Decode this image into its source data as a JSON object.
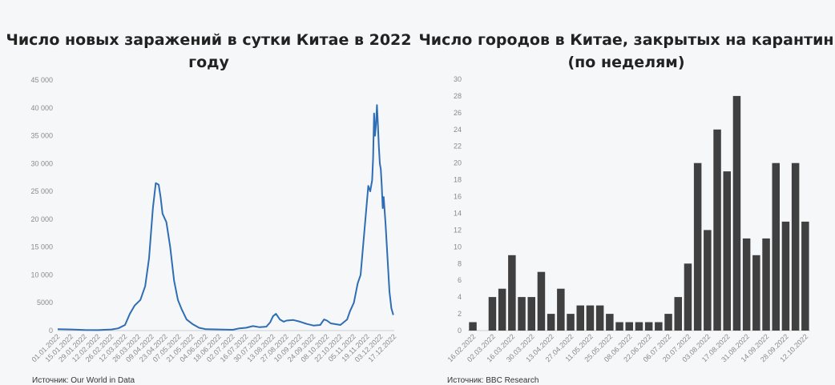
{
  "left": {
    "title_line1": "Число новых заражений в сутки Китае в 2022",
    "title_line2": "году",
    "source": "Источник: Our World in Data"
  },
  "right": {
    "title_line1": "Число городов в Китае, закрытых на карантин",
    "title_line2": "(по неделям)",
    "source": "Источник: BBC Research"
  },
  "colors": {
    "line": "#2f6db5",
    "bar": "#404040",
    "axis": "#cfcfcf"
  },
  "chart_data": [
    {
      "type": "line",
      "title": "Число новых заражений в сутки Китае в 2022 году",
      "xlabel": "",
      "ylabel": "",
      "ylim": [
        0,
        45000
      ],
      "y_ticks": [
        0,
        5000,
        10000,
        15000,
        20000,
        25000,
        30000,
        35000,
        40000,
        45000
      ],
      "y_tick_labels": [
        "0",
        "5000",
        "10 000",
        "15 000",
        "20 000",
        "25 000",
        "30 000",
        "35 000",
        "40 000",
        "45 000"
      ],
      "x_tick_labels": [
        "01.01.2022",
        "15.01.2022",
        "29.01.2022",
        "12.02.2022",
        "26.02.2022",
        "12.03.2022",
        "26.03.2022",
        "09.04.2022",
        "23.04.2022",
        "07.05.2022",
        "21.05.2022",
        "04.06.2022",
        "18.06.2022",
        "02.07.2022",
        "16.07.2022",
        "30.07.2022",
        "13.08.2022",
        "27.08.2022",
        "10.09.2022",
        "24.09.2022",
        "08.10.2022",
        "22.10.2022",
        "05.11.2022",
        "19.11.2022",
        "03.12.2022",
        "17.12.2022"
      ],
      "grid": false,
      "series": [
        {
          "points": [
            [
              "2022-01-01",
              250
            ],
            [
              "2022-01-15",
              200
            ],
            [
              "2022-01-29",
              100
            ],
            [
              "2022-02-12",
              80
            ],
            [
              "2022-02-26",
              200
            ],
            [
              "2022-03-05",
              400
            ],
            [
              "2022-03-12",
              1000
            ],
            [
              "2022-03-17",
              3000
            ],
            [
              "2022-03-22",
              4500
            ],
            [
              "2022-03-28",
              5500
            ],
            [
              "2022-04-02",
              8000
            ],
            [
              "2022-04-06",
              13000
            ],
            [
              "2022-04-10",
              22000
            ],
            [
              "2022-04-13",
              26500
            ],
            [
              "2022-04-16",
              26200
            ],
            [
              "2022-04-18",
              24000
            ],
            [
              "2022-04-20",
              21000
            ],
            [
              "2022-04-24",
              19500
            ],
            [
              "2022-04-28",
              15000
            ],
            [
              "2022-05-02",
              9000
            ],
            [
              "2022-05-06",
              5500
            ],
            [
              "2022-05-10",
              3800
            ],
            [
              "2022-05-15",
              2000
            ],
            [
              "2022-05-21",
              1200
            ],
            [
              "2022-05-28",
              500
            ],
            [
              "2022-06-04",
              250
            ],
            [
              "2022-06-18",
              200
            ],
            [
              "2022-07-02",
              150
            ],
            [
              "2022-07-09",
              400
            ],
            [
              "2022-07-16",
              500
            ],
            [
              "2022-07-23",
              800
            ],
            [
              "2022-07-30",
              600
            ],
            [
              "2022-08-06",
              700
            ],
            [
              "2022-08-10",
              1500
            ],
            [
              "2022-08-13",
              2600
            ],
            [
              "2022-08-16",
              3000
            ],
            [
              "2022-08-20",
              2000
            ],
            [
              "2022-08-24",
              1600
            ],
            [
              "2022-08-27",
              1800
            ],
            [
              "2022-09-03",
              1900
            ],
            [
              "2022-09-10",
              1600
            ],
            [
              "2022-09-17",
              1200
            ],
            [
              "2022-09-24",
              900
            ],
            [
              "2022-10-01",
              1000
            ],
            [
              "2022-10-05",
              2000
            ],
            [
              "2022-10-08",
              1800
            ],
            [
              "2022-10-12",
              1300
            ],
            [
              "2022-10-22",
              1000
            ],
            [
              "2022-10-29",
              2000
            ],
            [
              "2022-11-01",
              3500
            ],
            [
              "2022-11-05",
              5000
            ],
            [
              "2022-11-09",
              8500
            ],
            [
              "2022-11-12",
              10000
            ],
            [
              "2022-11-15",
              16000
            ],
            [
              "2022-11-18",
              22000
            ],
            [
              "2022-11-20",
              26000
            ],
            [
              "2022-11-22",
              25000
            ],
            [
              "2022-11-24",
              27000
            ],
            [
              "2022-11-25",
              31000
            ],
            [
              "2022-11-26",
              39000
            ],
            [
              "2022-11-27",
              35000
            ],
            [
              "2022-11-28",
              37000
            ],
            [
              "2022-11-29",
              40500
            ],
            [
              "2022-11-30",
              37000
            ],
            [
              "2022-12-01",
              33000
            ],
            [
              "2022-12-02",
              30000
            ],
            [
              "2022-12-03",
              29000
            ],
            [
              "2022-12-04",
              26000
            ],
            [
              "2022-12-05",
              22000
            ],
            [
              "2022-12-06",
              24000
            ],
            [
              "2022-12-08",
              19000
            ],
            [
              "2022-12-10",
              13000
            ],
            [
              "2022-12-12",
              7000
            ],
            [
              "2022-12-14",
              4000
            ],
            [
              "2022-12-16",
              2800
            ]
          ]
        }
      ]
    },
    {
      "type": "bar",
      "title": "Число городов в Китае, закрытых на карантин (по неделям)",
      "xlabel": "",
      "ylabel": "",
      "ylim": [
        0,
        30
      ],
      "y_ticks": [
        0,
        2,
        4,
        6,
        8,
        10,
        12,
        14,
        16,
        18,
        20,
        22,
        24,
        26,
        28,
        30
      ],
      "grid": false,
      "categories": [
        "16.02.2022",
        "23.02.2022",
        "02.03.2022",
        "09.03.2022",
        "16.03.2022",
        "23.03.2022",
        "30.03.2022",
        "06.04.2022",
        "13.04.2022",
        "20.04.2022",
        "27.04.2022",
        "04.05.2022",
        "11.05.2022",
        "18.05.2022",
        "25.05.2022",
        "01.06.2022",
        "08.06.2022",
        "15.06.2022",
        "22.06.2022",
        "29.06.2022",
        "06.07.2022",
        "13.07.2022",
        "20.07.2022",
        "27.07.2022",
        "03.08.2022",
        "10.08.2022",
        "17.08.2022",
        "24.08.2022",
        "31.08.2022",
        "07.09.2022",
        "14.09.2022",
        "21.09.2022",
        "28.09.2022",
        "05.10.2022",
        "12.10.2022"
      ],
      "values": [
        1,
        0,
        4,
        5,
        9,
        4,
        4,
        7,
        2,
        5,
        2,
        3,
        3,
        3,
        2,
        1,
        1,
        1,
        1,
        1,
        2,
        4,
        8,
        20,
        12,
        24,
        19,
        28,
        11,
        9,
        11,
        20,
        13,
        20,
        13
      ],
      "x_tick_labels": [
        "16.02.2022",
        "02.03.2022",
        "16.03.2022",
        "30.03.2022",
        "13.04.2022",
        "27.04.2022",
        "11.05.2022",
        "25.05.2022",
        "08.06.2022",
        "22.06.2022",
        "06.07.2022",
        "20.07.2022",
        "03.08.2022",
        "17.08.2022",
        "31.08.2022",
        "14.09.2022",
        "28.09.2022",
        "12.10.2022"
      ]
    }
  ]
}
